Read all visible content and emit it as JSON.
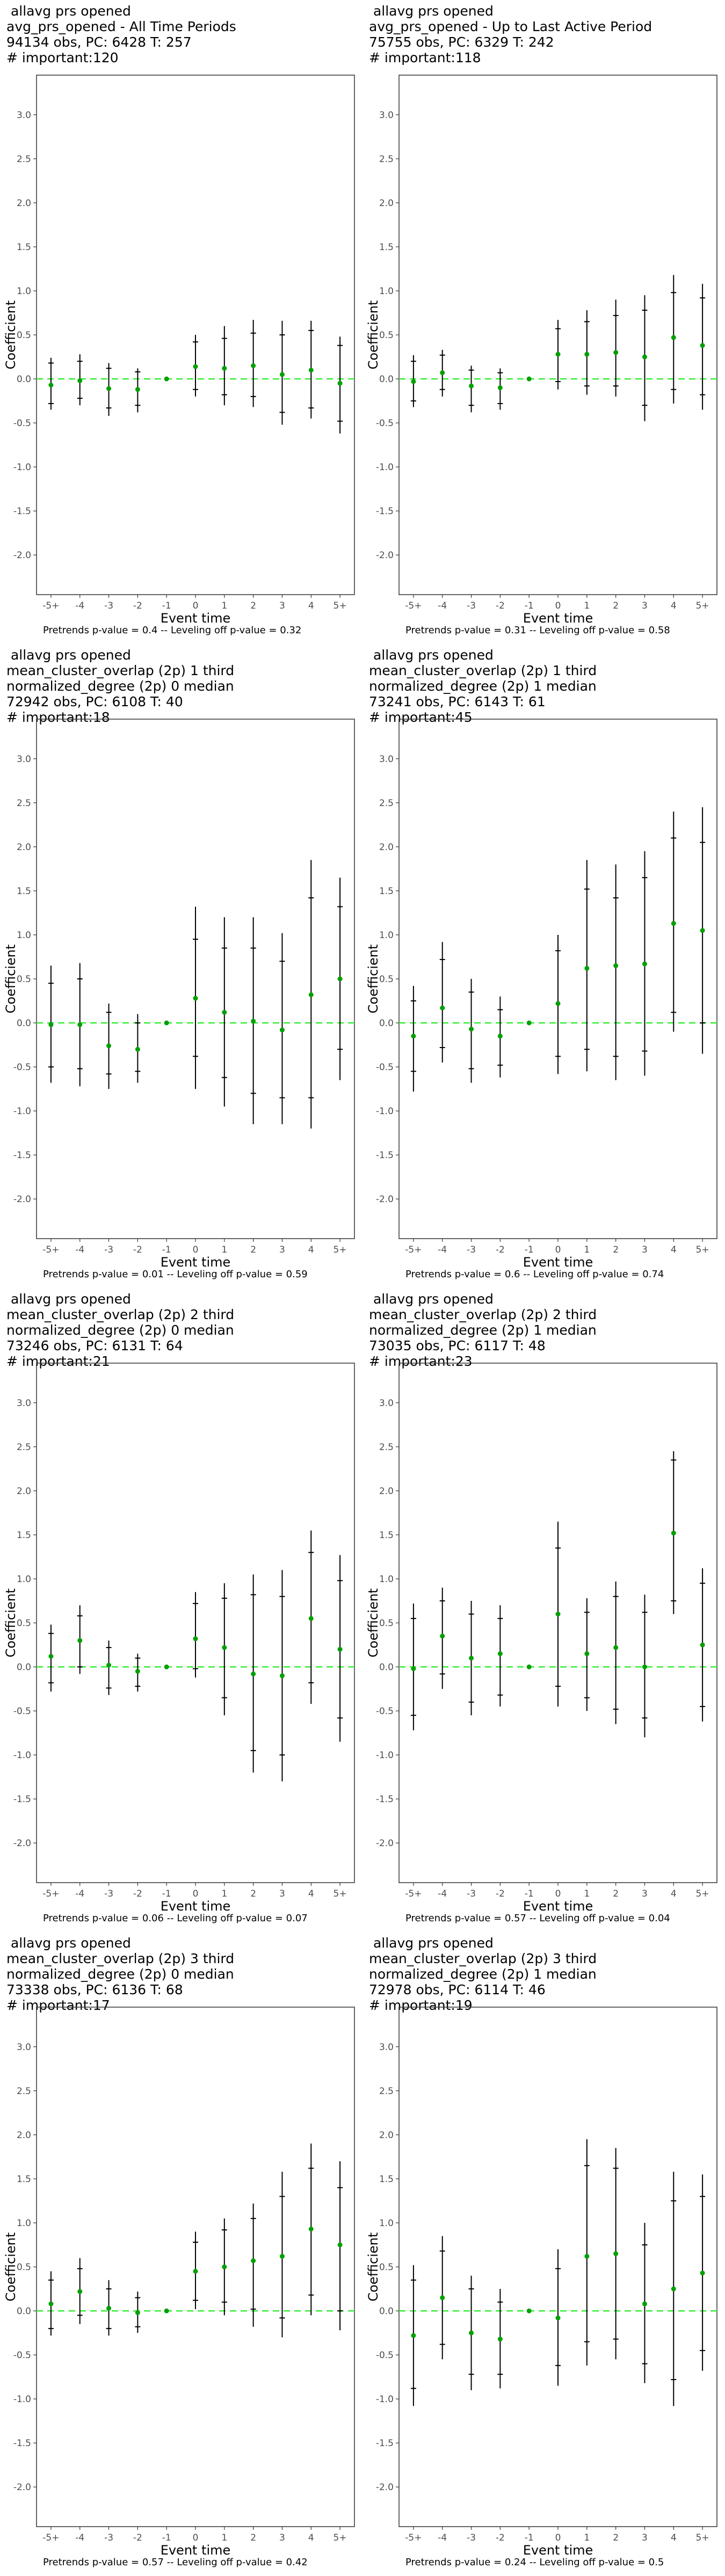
{
  "figure": {
    "xlabel": "Event time",
    "ylabel": "Coefficient",
    "colors": {
      "point": "#00a000",
      "errorbar": "#000000",
      "reference_line": "#33ee33",
      "panel_border": "#333333"
    }
  },
  "panels": [
    {
      "title_lines": [
        " allavg prs opened",
        "avg_prs_opened - All Time Periods",
        "94134 obs, PC: 6428 T: 257",
        "# important:120"
      ],
      "caption": "Pretrends p-value = 0.4 -- Leveling off p-value = 0.32"
    },
    {
      "title_lines": [
        " allavg prs opened",
        "avg_prs_opened - Up to Last Active Period",
        "75755 obs, PC: 6329 T: 242",
        "# important:118"
      ],
      "caption": "Pretrends p-value = 0.31 -- Leveling off p-value = 0.58"
    },
    {
      "title_lines": [
        " allavg prs opened",
        "mean_cluster_overlap (2p) 1 third",
        "normalized_degree (2p) 0 median",
        "72942 obs, PC: 6108 T: 40",
        "# important:18"
      ],
      "caption": "Pretrends p-value = 0.01 -- Leveling off p-value = 0.59"
    },
    {
      "title_lines": [
        " allavg prs opened",
        "mean_cluster_overlap (2p) 1 third",
        "normalized_degree (2p) 1 median",
        "73241 obs, PC: 6143 T: 61",
        "# important:45"
      ],
      "caption": "Pretrends p-value = 0.6 -- Leveling off p-value = 0.74"
    },
    {
      "title_lines": [
        " allavg prs opened",
        "mean_cluster_overlap (2p) 2 third",
        "normalized_degree (2p) 0 median",
        "73246 obs, PC: 6131 T: 64",
        "# important:21"
      ],
      "caption": "Pretrends p-value = 0.06 -- Leveling off p-value = 0.07"
    },
    {
      "title_lines": [
        " allavg prs opened",
        "mean_cluster_overlap (2p) 2 third",
        "normalized_degree (2p) 1 median",
        "73035 obs, PC: 6117 T: 48",
        "# important:23"
      ],
      "caption": "Pretrends p-value = 0.57 -- Leveling off p-value = 0.04"
    },
    {
      "title_lines": [
        " allavg prs opened",
        "mean_cluster_overlap (2p) 3 third",
        "normalized_degree (2p) 0 median",
        "73338 obs, PC: 6136 T: 68",
        "# important:17"
      ],
      "caption": "Pretrends p-value = 0.57 -- Leveling off p-value = 0.42"
    },
    {
      "title_lines": [
        " allavg prs opened",
        "mean_cluster_overlap (2p) 3 third",
        "normalized_degree (2p) 1 median",
        "72978 obs, PC: 6114 T: 46",
        "# important:19"
      ],
      "caption": "Pretrends p-value = 0.24 -- Leveling off p-value = 0.5"
    }
  ],
  "chart_data": [
    {
      "type": "scatter",
      "ylim": [
        -2.45,
        3.45
      ],
      "yticks": [
        -2.0,
        -1.5,
        -1.0,
        -0.5,
        0.0,
        0.5,
        1.0,
        1.5,
        2.0,
        2.5,
        3.0
      ],
      "categories": [
        "-5+",
        "-4",
        "-3",
        "-2",
        "-1",
        "0",
        "1",
        "2",
        "3",
        "4",
        "5+"
      ],
      "reference_y": 0,
      "grid": false,
      "series": [
        {
          "values": [
            -0.07,
            -0.02,
            -0.11,
            -0.12,
            0.0,
            0.14,
            0.12,
            0.15,
            0.05,
            0.1,
            -0.05
          ],
          "ci95_low": [
            -0.35,
            -0.3,
            -0.42,
            -0.38,
            0.0,
            -0.2,
            -0.3,
            -0.32,
            -0.52,
            -0.45,
            -0.62
          ],
          "ci95_high": [
            0.24,
            0.28,
            0.18,
            0.12,
            0.0,
            0.5,
            0.6,
            0.67,
            0.66,
            0.66,
            0.48
          ],
          "ci90_low": [
            -0.28,
            -0.22,
            -0.33,
            -0.3,
            0.0,
            -0.12,
            -0.18,
            -0.2,
            -0.38,
            -0.33,
            -0.48
          ],
          "ci90_high": [
            0.18,
            0.2,
            0.12,
            0.08,
            0.0,
            0.42,
            0.46,
            0.52,
            0.5,
            0.55,
            0.38
          ]
        }
      ]
    },
    {
      "type": "scatter",
      "ylim": [
        -2.45,
        3.45
      ],
      "yticks": [
        -2.0,
        -1.5,
        -1.0,
        -0.5,
        0.0,
        0.5,
        1.0,
        1.5,
        2.0,
        2.5,
        3.0
      ],
      "categories": [
        "-5+",
        "-4",
        "-3",
        "-2",
        "-1",
        "0",
        "1",
        "2",
        "3",
        "4",
        "5+"
      ],
      "reference_y": 0,
      "grid": false,
      "series": [
        {
          "values": [
            -0.03,
            0.07,
            -0.08,
            -0.1,
            0.0,
            0.28,
            0.28,
            0.3,
            0.25,
            0.47,
            0.38
          ],
          "ci95_low": [
            -0.32,
            -0.2,
            -0.38,
            -0.35,
            0.0,
            -0.12,
            -0.18,
            -0.2,
            -0.48,
            -0.28,
            -0.35
          ],
          "ci95_high": [
            0.27,
            0.33,
            0.15,
            0.12,
            0.0,
            0.67,
            0.78,
            0.9,
            0.95,
            1.18,
            1.08
          ],
          "ci90_low": [
            -0.25,
            -0.12,
            -0.3,
            -0.28,
            0.0,
            -0.03,
            -0.08,
            -0.08,
            -0.3,
            -0.12,
            -0.18
          ],
          "ci90_high": [
            0.2,
            0.27,
            0.1,
            0.07,
            0.0,
            0.57,
            0.65,
            0.72,
            0.78,
            0.98,
            0.92
          ]
        }
      ]
    },
    {
      "type": "scatter",
      "ylim": [
        -2.45,
        3.45
      ],
      "yticks": [
        -2.0,
        -1.5,
        -1.0,
        -0.5,
        0.0,
        0.5,
        1.0,
        1.5,
        2.0,
        2.5,
        3.0
      ],
      "categories": [
        "-5+",
        "-4",
        "-3",
        "-2",
        "-1",
        "0",
        "1",
        "2",
        "3",
        "4",
        "5+"
      ],
      "reference_y": 0,
      "grid": false,
      "series": [
        {
          "values": [
            -0.02,
            -0.02,
            -0.26,
            -0.3,
            0.0,
            0.28,
            0.12,
            0.02,
            -0.08,
            0.32,
            0.5
          ],
          "ci95_low": [
            -0.68,
            -0.72,
            -0.75,
            -0.68,
            0.0,
            -0.75,
            -0.95,
            -1.15,
            -1.15,
            -1.2,
            -0.65
          ],
          "ci95_high": [
            0.65,
            0.68,
            0.22,
            0.1,
            0.0,
            1.32,
            1.2,
            1.2,
            1.02,
            1.85,
            1.65
          ],
          "ci90_low": [
            -0.5,
            -0.52,
            -0.58,
            -0.55,
            0.0,
            -0.38,
            -0.62,
            -0.8,
            -0.85,
            -0.85,
            -0.3
          ],
          "ci90_high": [
            0.45,
            0.5,
            0.12,
            0.0,
            0.0,
            0.95,
            0.85,
            0.85,
            0.7,
            1.42,
            1.32
          ]
        }
      ]
    },
    {
      "type": "scatter",
      "ylim": [
        -2.45,
        3.45
      ],
      "yticks": [
        -2.0,
        -1.5,
        -1.0,
        -0.5,
        0.0,
        0.5,
        1.0,
        1.5,
        2.0,
        2.5,
        3.0
      ],
      "categories": [
        "-5+",
        "-4",
        "-3",
        "-2",
        "-1",
        "0",
        "1",
        "2",
        "3",
        "4",
        "5+"
      ],
      "reference_y": 0,
      "grid": false,
      "series": [
        {
          "values": [
            -0.15,
            0.17,
            -0.07,
            -0.15,
            0.0,
            0.22,
            0.62,
            0.65,
            0.67,
            1.13,
            1.05
          ],
          "ci95_low": [
            -0.78,
            -0.45,
            -0.68,
            -0.62,
            0.0,
            -0.58,
            -0.55,
            -0.65,
            -0.6,
            -0.1,
            -0.35
          ],
          "ci95_high": [
            0.42,
            0.92,
            0.5,
            0.3,
            0.0,
            1.0,
            1.85,
            1.8,
            1.95,
            2.4,
            2.45
          ],
          "ci90_low": [
            -0.55,
            -0.28,
            -0.52,
            -0.48,
            0.0,
            -0.38,
            -0.3,
            -0.38,
            -0.32,
            0.12,
            0.0
          ],
          "ci90_high": [
            0.25,
            0.72,
            0.35,
            0.15,
            0.0,
            0.82,
            1.52,
            1.42,
            1.65,
            2.1,
            2.05
          ]
        }
      ]
    },
    {
      "type": "scatter",
      "ylim": [
        -2.45,
        3.45
      ],
      "yticks": [
        -2.0,
        -1.5,
        -1.0,
        -0.5,
        0.0,
        0.5,
        1.0,
        1.5,
        2.0,
        2.5,
        3.0
      ],
      "categories": [
        "-5+",
        "-4",
        "-3",
        "-2",
        "-1",
        "0",
        "1",
        "2",
        "3",
        "4",
        "5+"
      ],
      "reference_y": 0,
      "grid": false,
      "series": [
        {
          "values": [
            0.12,
            0.3,
            0.02,
            -0.05,
            0.0,
            0.32,
            0.22,
            -0.08,
            -0.1,
            0.55,
            0.2
          ],
          "ci95_low": [
            -0.28,
            -0.08,
            -0.32,
            -0.28,
            0.0,
            -0.12,
            -0.55,
            -1.2,
            -1.3,
            -0.42,
            -0.85
          ],
          "ci95_high": [
            0.48,
            0.7,
            0.3,
            0.15,
            0.0,
            0.85,
            0.95,
            1.05,
            1.1,
            1.55,
            1.27
          ],
          "ci90_low": [
            -0.18,
            0.0,
            -0.24,
            -0.22,
            0.0,
            -0.02,
            -0.35,
            -0.95,
            -1.0,
            -0.18,
            -0.58
          ],
          "ci90_high": [
            0.38,
            0.58,
            0.22,
            0.1,
            0.0,
            0.72,
            0.78,
            0.82,
            0.8,
            1.3,
            0.98
          ]
        }
      ]
    },
    {
      "type": "scatter",
      "ylim": [
        -2.45,
        3.45
      ],
      "yticks": [
        -2.0,
        -1.5,
        -1.0,
        -0.5,
        0.0,
        0.5,
        1.0,
        1.5,
        2.0,
        2.5,
        3.0
      ],
      "categories": [
        "-5+",
        "-4",
        "-3",
        "-2",
        "-1",
        "0",
        "1",
        "2",
        "3",
        "4",
        "5+"
      ],
      "reference_y": 0,
      "grid": false,
      "series": [
        {
          "values": [
            -0.02,
            0.35,
            0.1,
            0.15,
            0.0,
            0.6,
            0.15,
            0.22,
            0.0,
            1.52,
            0.25
          ],
          "ci95_low": [
            -0.72,
            -0.25,
            -0.55,
            -0.45,
            0.0,
            -0.45,
            -0.5,
            -0.65,
            -0.8,
            0.6,
            -0.62
          ],
          "ci95_high": [
            0.72,
            0.9,
            0.75,
            0.7,
            0.0,
            1.65,
            0.78,
            0.97,
            0.82,
            2.45,
            1.12
          ],
          "ci90_low": [
            -0.55,
            -0.08,
            -0.4,
            -0.32,
            0.0,
            -0.22,
            -0.35,
            -0.48,
            -0.58,
            0.75,
            -0.45
          ],
          "ci90_high": [
            0.55,
            0.75,
            0.6,
            0.55,
            0.0,
            1.35,
            0.62,
            0.8,
            0.62,
            2.35,
            0.95
          ]
        }
      ]
    },
    {
      "type": "scatter",
      "ylim": [
        -2.45,
        3.45
      ],
      "yticks": [
        -2.0,
        -1.5,
        -1.0,
        -0.5,
        0.0,
        0.5,
        1.0,
        1.5,
        2.0,
        2.5,
        3.0
      ],
      "categories": [
        "-5+",
        "-4",
        "-3",
        "-2",
        "-1",
        "0",
        "1",
        "2",
        "3",
        "4",
        "5+"
      ],
      "reference_y": 0,
      "grid": false,
      "series": [
        {
          "values": [
            0.08,
            0.22,
            0.03,
            -0.02,
            0.0,
            0.45,
            0.5,
            0.57,
            0.62,
            0.93,
            0.75
          ],
          "ci95_low": [
            -0.28,
            -0.15,
            -0.28,
            -0.25,
            0.0,
            0.02,
            -0.05,
            -0.18,
            -0.3,
            -0.05,
            -0.22
          ],
          "ci95_high": [
            0.45,
            0.6,
            0.35,
            0.22,
            0.0,
            0.9,
            1.05,
            1.22,
            1.58,
            1.9,
            1.7
          ],
          "ci90_low": [
            -0.2,
            -0.05,
            -0.2,
            -0.18,
            0.0,
            0.12,
            0.1,
            0.02,
            -0.08,
            0.18,
            0.0
          ],
          "ci90_high": [
            0.35,
            0.48,
            0.25,
            0.15,
            0.0,
            0.78,
            0.92,
            1.05,
            1.3,
            1.62,
            1.4
          ]
        }
      ]
    },
    {
      "type": "scatter",
      "ylim": [
        -2.45,
        3.45
      ],
      "yticks": [
        -2.0,
        -1.5,
        -1.0,
        -0.5,
        0.0,
        0.5,
        1.0,
        1.5,
        2.0,
        2.5,
        3.0
      ],
      "categories": [
        "-5+",
        "-4",
        "-3",
        "-2",
        "-1",
        "0",
        "1",
        "2",
        "3",
        "4",
        "5+"
      ],
      "reference_y": 0,
      "grid": false,
      "series": [
        {
          "values": [
            -0.28,
            0.15,
            -0.25,
            -0.32,
            0.0,
            -0.08,
            0.62,
            0.65,
            0.08,
            0.25,
            0.43
          ],
          "ci95_low": [
            -1.08,
            -0.55,
            -0.9,
            -0.88,
            0.0,
            -0.85,
            -0.62,
            -0.55,
            -0.82,
            -1.08,
            -0.68
          ],
          "ci95_high": [
            0.52,
            0.85,
            0.4,
            0.25,
            0.0,
            0.7,
            1.95,
            1.85,
            1.0,
            1.58,
            1.55
          ],
          "ci90_low": [
            -0.88,
            -0.38,
            -0.72,
            -0.72,
            0.0,
            -0.62,
            -0.35,
            -0.32,
            -0.6,
            -0.78,
            -0.45
          ],
          "ci90_high": [
            0.35,
            0.68,
            0.25,
            0.1,
            0.0,
            0.48,
            1.65,
            1.62,
            0.75,
            1.25,
            1.3
          ]
        }
      ]
    }
  ]
}
